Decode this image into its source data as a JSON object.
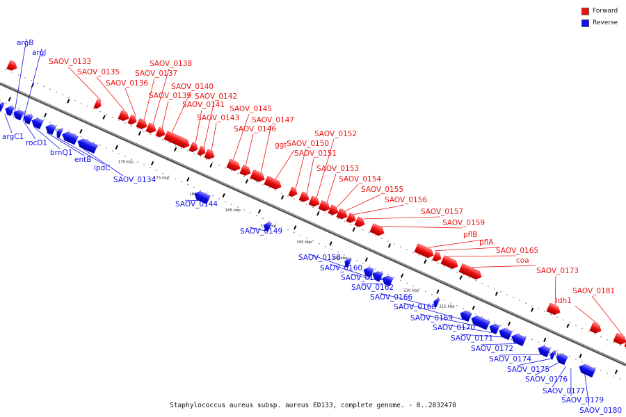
{
  "legend": {
    "forward": {
      "label": "Forward",
      "color": "#ee1111"
    },
    "reverse": {
      "label": "Reverse",
      "color": "#1111ee"
    }
  },
  "caption": "Staphylococcus aureus subsp. aureus ED133, complete genome. - 0..2832478",
  "ticks": [
    "155 kbp",
    "160 kbp",
    "165 kbp",
    "170 kbp",
    "175 kbp",
    "180 kbp",
    "185 kbp",
    "190 kbp",
    "195 kbp",
    "200 kbp",
    "205 kbp",
    "210 kbp",
    "215 kbp",
    "220 kbp",
    "225 kbp",
    "230 kbp"
  ],
  "forward_genes": [
    "SAOV_0133",
    "SAOV_0135",
    "SAOV_0136",
    "SAOV_0137",
    "SAOV_0138",
    "SAOV_0139",
    "SAOV_0140",
    "SAOV_0141",
    "SAOV_0142",
    "SAOV_0143",
    "SAOV_0145",
    "SAOV_0146",
    "SAOV_0147",
    "ggt",
    "SAOV_0150",
    "SAOV_0151",
    "SAOV_0152",
    "SAOV_0153",
    "SAOV_0154",
    "SAOV_0155",
    "SAOV_0156",
    "SAOV_0157",
    "SAOV_0159",
    "pflB",
    "pflA",
    "SAOV_0165",
    "coa",
    "SAOV_0173",
    "ldh1",
    "SAOV_0181"
  ],
  "reverse_genes": [
    "argB",
    "argJ",
    "argC1",
    "rocD1",
    "brnQ1",
    "entB",
    "ipdC",
    "SAOV_0134",
    "SAOV_0144",
    "SAOV_0149",
    "SAOV_0158",
    "SAOV_0160",
    "SAOV_0161",
    "SAOV_0162",
    "SAOV_0166",
    "SAOV_0168",
    "SAOV_0169",
    "SAOV_0170",
    "SAOV_0171",
    "SAOV_0172",
    "SAOV_0174",
    "SAOV_0175",
    "SAOV_0176",
    "SAOV_0177",
    "SAOV_0179",
    "SAOV_0180"
  ]
}
